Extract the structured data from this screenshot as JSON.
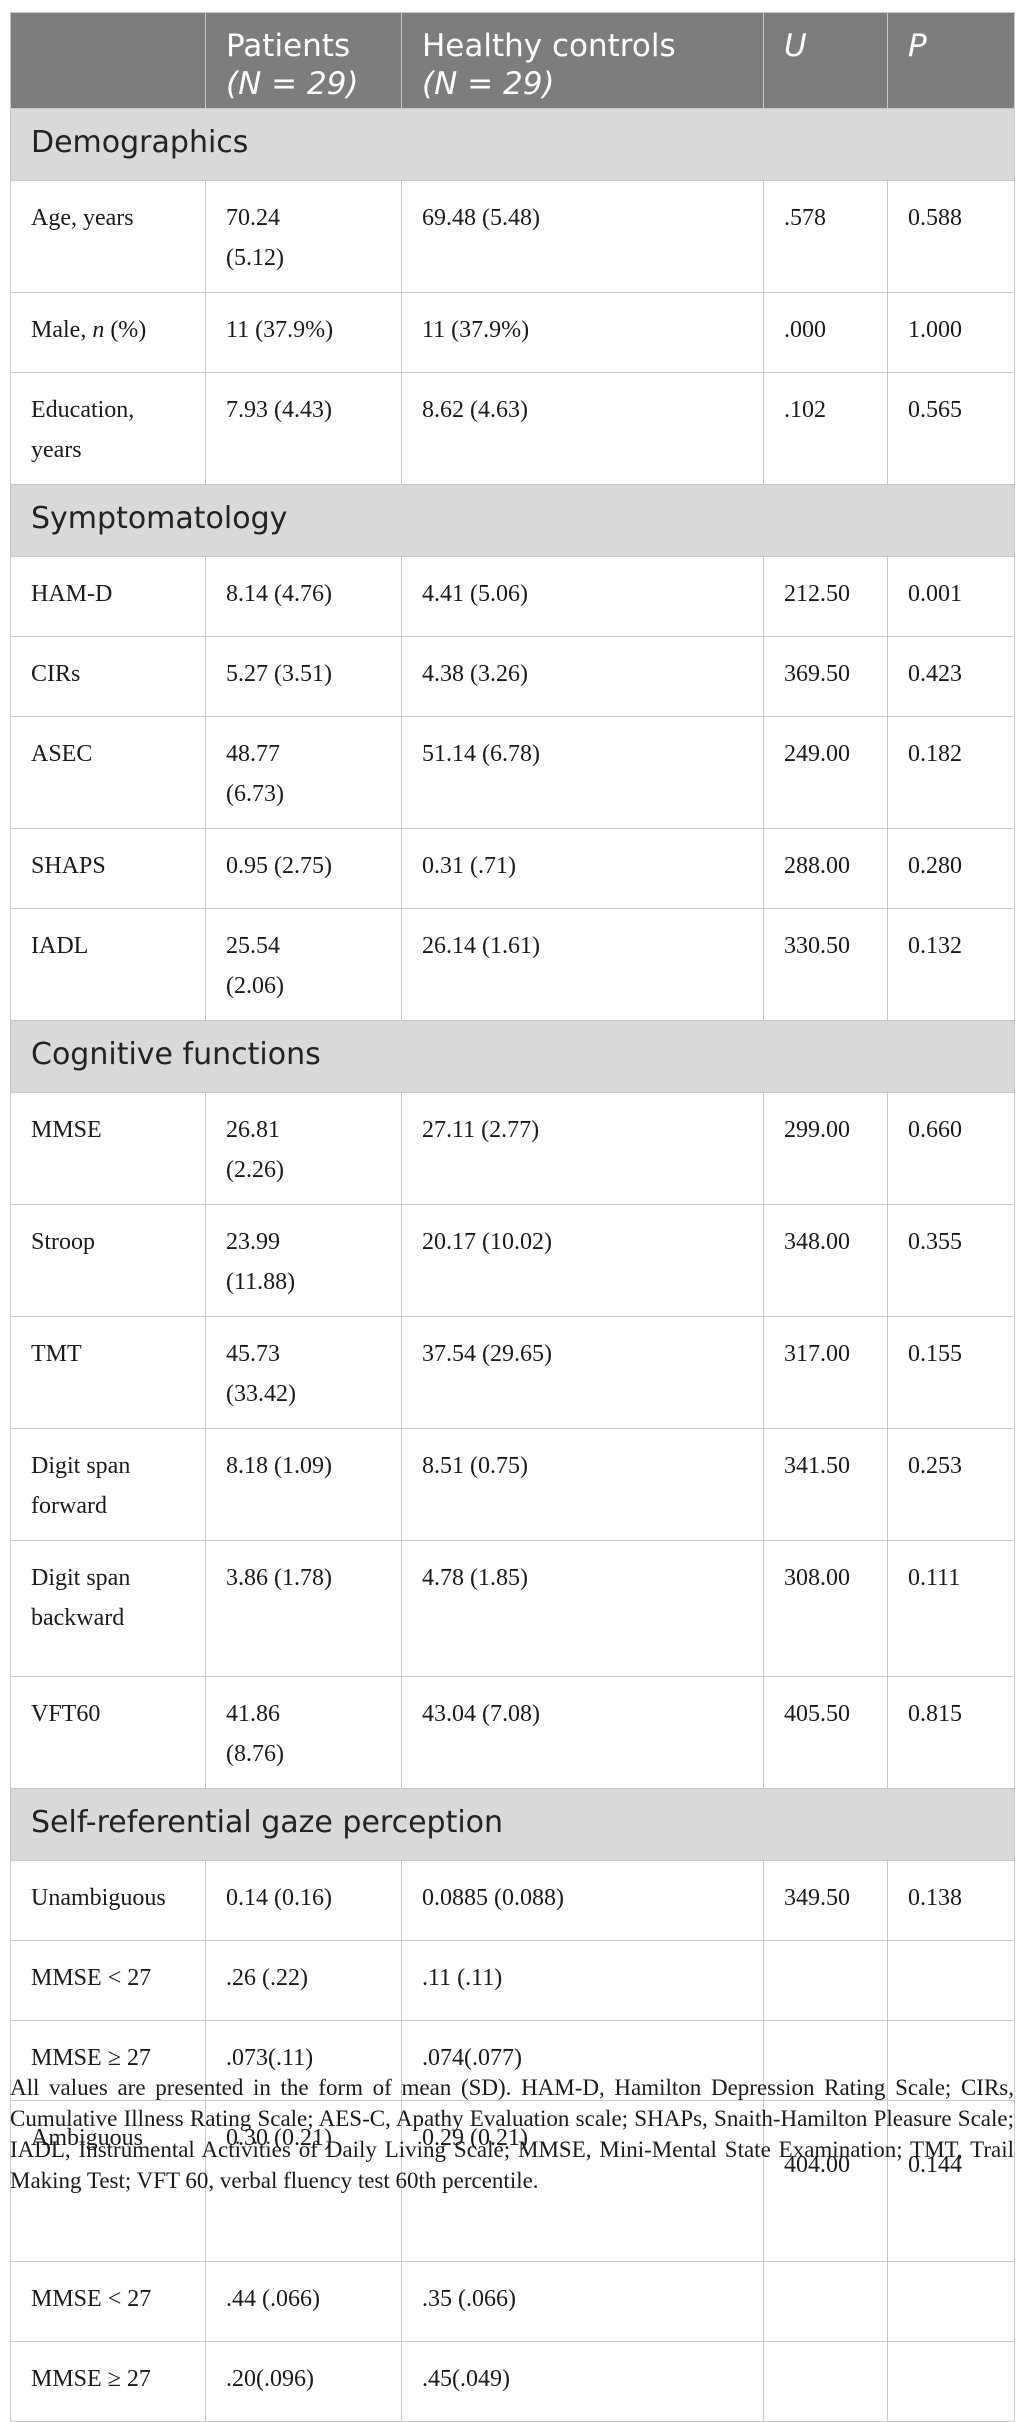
{
  "header": {
    "col_label": "",
    "patients": "Patients",
    "patients_n": "(N = 29)",
    "controls": "Healthy controls",
    "controls_n": "(N = 29)",
    "u": "U",
    "p": "P"
  },
  "sections": [
    {
      "title": "Demographics",
      "rows": [
        {
          "label": "Age, years",
          "patients": "70.24 (5.12)",
          "controls": "69.48 (5.48)",
          "u": ".578",
          "p": "0.588"
        },
        {
          "label": "Male, n (%)",
          "patients": "11 (37.9%)",
          "controls": "11 (37.9%)",
          "u": ".000",
          "p": "1.000"
        },
        {
          "label": "Education, years",
          "patients": "7.93 (4.43)",
          "controls": "8.62 (4.63)",
          "u": ".102",
          "p": "0.565"
        }
      ]
    },
    {
      "title": "Symptomatology",
      "rows": [
        {
          "label": "HAM-D",
          "patients": "8.14 (4.76)",
          "controls": "4.41 (5.06)",
          "u": "212.50",
          "p": "0.001"
        },
        {
          "label": "CIRs",
          "patients": "5.27 (3.51)",
          "controls": "4.38 (3.26)",
          "u": "369.50",
          "p": "0.423"
        },
        {
          "label": "ASEC",
          "patients": "48.77 (6.73)",
          "controls": "51.14 (6.78)",
          "u": "249.00",
          "p": "0.182"
        },
        {
          "label": "SHAPS",
          "patients": "0.95 (2.75)",
          "controls": "0.31 (.71)",
          "u": "288.00",
          "p": "0.280"
        },
        {
          "label": "IADL",
          "patients": "25.54 (2.06)",
          "controls": "26.14 (1.61)",
          "u": "330.50",
          "p": "0.132"
        }
      ]
    },
    {
      "title": "Cognitive functions",
      "rows": [
        {
          "label": "MMSE",
          "patients": "26.81 (2.26)",
          "controls": "27.11 (2.77)",
          "u": "299.00",
          "p": "0.660"
        },
        {
          "label": "Stroop",
          "patients": "23.99 (11.88)",
          "controls": "20.17 (10.02)",
          "u": "348.00",
          "p": "0.355"
        },
        {
          "label": "TMT",
          "patients": "45.73 (33.42)",
          "controls": "37.54 (29.65)",
          "u": "317.00",
          "p": "0.155"
        },
        {
          "label": "Digit span forward",
          "patients": "8.18 (1.09)",
          "controls": "8.51 (0.75)",
          "u": "341.50",
          "p": "0.253"
        },
        {
          "label": "Digit span backward",
          "patients": "3.86 (1.78)",
          "controls": "4.78 (1.85)",
          "u": "308.00",
          "p": "0.111"
        },
        {
          "label": "VFT60",
          "patients": "41.86 (8.76)",
          "controls": "43.04 (7.08)",
          "u": "405.50",
          "p": "0.815"
        }
      ]
    },
    {
      "title": "Self-referential gaze perception",
      "rows": [
        {
          "label": "Unambiguous",
          "patients": "0.14 (0.16)",
          "controls": "0.0885 (0.088)",
          "u": "349.50",
          "p": "0.138"
        },
        {
          "label": "MMSE < 27",
          "patients": ".26 (.22)",
          "controls": ".11 (.11)",
          "u": "",
          "p": ""
        },
        {
          "label": "MMSE ≥ 27",
          "patients": ".073(.11)",
          "controls": ".074(.077)",
          "u": "",
          "p": ""
        },
        {
          "label": "Ambiguous",
          "patients": " 0.30 (0.21)",
          "controls": "0.29 (0.21)",
          "u": "404.00",
          "p": "0.144"
        },
        {
          "label": "MMSE < 27",
          "patients": ".44 (.066)",
          "controls": ".35 (.066)",
          "u": "",
          "p": ""
        },
        {
          "label": "MMSE ≥ 27",
          "patients": ".20(.096)",
          "controls": ".45(.049)",
          "u": "",
          "p": ""
        }
      ]
    }
  ],
  "footnote": "All values are presented in the form of mean (SD). HAM-D, Hamilton Depression Rating Scale; CIRs, Cumulative Illness Rating Scale; AES-C, Apathy Evaluation scale; SHAPs, Snaith-Hamilton Pleasure Scale; IADL, Instrumental Activities of Daily Living Scale; MMSE, Mini-Mental State Examination; TMT, Trail Making Test; VFT 60, verbal fluency test 60th percentile."
}
